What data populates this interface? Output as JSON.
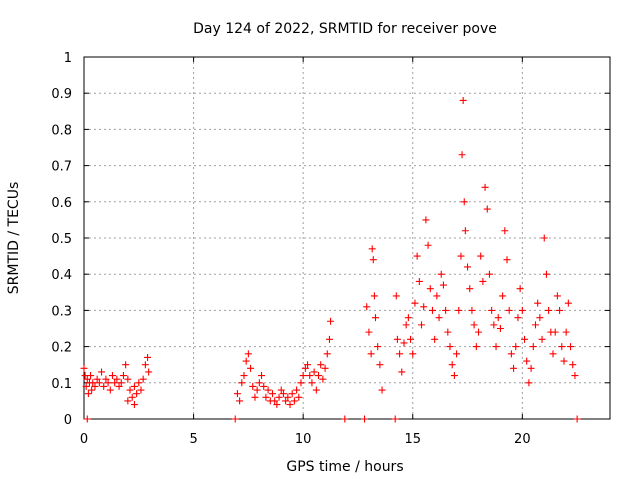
{
  "chart_data": {
    "type": "scatter",
    "title": "Day 124 of 2022, SRMTID for receiver pove",
    "xlabel": "GPS time / hours",
    "ylabel": "SRMTID / TECUs",
    "xlim": [
      0,
      24
    ],
    "ylim": [
      0,
      1
    ],
    "xticks": [
      0,
      5,
      10,
      15,
      20
    ],
    "xtick_labels": [
      "0",
      "5",
      "10",
      "15",
      "20"
    ],
    "yticks": [
      0,
      0.1,
      0.2,
      0.3,
      0.4,
      0.5,
      0.6,
      0.7,
      0.8,
      0.9,
      1
    ],
    "ytick_labels": [
      "0",
      "0.1",
      "0.2",
      "0.3",
      "0.4",
      "0.5",
      "0.6",
      "0.7",
      "0.8",
      "0.9",
      "1"
    ],
    "grid": true,
    "marker": "plus",
    "color": "#ff0000",
    "series": [
      {
        "name": "SRMTID",
        "points": [
          [
            0.0,
            0.14
          ],
          [
            0.05,
            0.12
          ],
          [
            0.1,
            0.09
          ],
          [
            0.15,
            0.11
          ],
          [
            0.2,
            0.07
          ],
          [
            0.25,
            0.1
          ],
          [
            0.3,
            0.12
          ],
          [
            0.35,
            0.08
          ],
          [
            0.4,
            0.1
          ],
          [
            0.5,
            0.09
          ],
          [
            0.6,
            0.11
          ],
          [
            0.7,
            0.1
          ],
          [
            0.8,
            0.13
          ],
          [
            0.9,
            0.09
          ],
          [
            1.0,
            0.11
          ],
          [
            1.1,
            0.1
          ],
          [
            1.2,
            0.08
          ],
          [
            1.3,
            0.12
          ],
          [
            1.4,
            0.1
          ],
          [
            1.5,
            0.11
          ],
          [
            1.6,
            0.09
          ],
          [
            1.7,
            0.1
          ],
          [
            1.8,
            0.12
          ],
          [
            1.9,
            0.15
          ],
          [
            2.0,
            0.11
          ],
          [
            2.1,
            0.08
          ],
          [
            2.2,
            0.06
          ],
          [
            2.3,
            0.09
          ],
          [
            2.4,
            0.07
          ],
          [
            2.5,
            0.1
          ],
          [
            2.6,
            0.08
          ],
          [
            2.7,
            0.11
          ],
          [
            2.8,
            0.15
          ],
          [
            2.9,
            0.17
          ],
          [
            2.95,
            0.13
          ],
          [
            0.15,
            0.0
          ],
          [
            2.0,
            0.05
          ],
          [
            2.3,
            0.04
          ],
          [
            6.9,
            0.0
          ],
          [
            7.0,
            0.07
          ],
          [
            7.1,
            0.05
          ],
          [
            7.2,
            0.1
          ],
          [
            7.3,
            0.12
          ],
          [
            7.4,
            0.16
          ],
          [
            7.5,
            0.18
          ],
          [
            7.6,
            0.14
          ],
          [
            7.7,
            0.09
          ],
          [
            7.8,
            0.06
          ],
          [
            7.9,
            0.08
          ],
          [
            8.0,
            0.1
          ],
          [
            8.1,
            0.12
          ],
          [
            8.2,
            0.09
          ],
          [
            8.3,
            0.06
          ],
          [
            8.4,
            0.08
          ],
          [
            8.5,
            0.05
          ],
          [
            8.6,
            0.07
          ],
          [
            8.7,
            0.05
          ],
          [
            8.8,
            0.04
          ],
          [
            8.9,
            0.06
          ],
          [
            9.0,
            0.08
          ],
          [
            9.1,
            0.07
          ],
          [
            9.2,
            0.05
          ],
          [
            9.3,
            0.06
          ],
          [
            9.4,
            0.04
          ],
          [
            9.5,
            0.07
          ],
          [
            9.6,
            0.05
          ],
          [
            9.7,
            0.08
          ],
          [
            9.8,
            0.06
          ],
          [
            9.9,
            0.1
          ],
          [
            10.0,
            0.12
          ],
          [
            10.1,
            0.14
          ],
          [
            10.2,
            0.15
          ],
          [
            10.3,
            0.12
          ],
          [
            10.4,
            0.1
          ],
          [
            10.5,
            0.13
          ],
          [
            10.6,
            0.08
          ],
          [
            10.7,
            0.12
          ],
          [
            10.8,
            0.15
          ],
          [
            10.9,
            0.11
          ],
          [
            11.0,
            0.14
          ],
          [
            11.1,
            0.18
          ],
          [
            11.2,
            0.22
          ],
          [
            11.25,
            0.27
          ],
          [
            11.9,
            0.0
          ],
          [
            12.8,
            0.0
          ],
          [
            12.9,
            0.31
          ],
          [
            13.0,
            0.24
          ],
          [
            13.1,
            0.18
          ],
          [
            13.15,
            0.47
          ],
          [
            13.2,
            0.44
          ],
          [
            13.25,
            0.34
          ],
          [
            13.3,
            0.28
          ],
          [
            13.4,
            0.2
          ],
          [
            13.5,
            0.15
          ],
          [
            13.6,
            0.08
          ],
          [
            14.2,
            0.0
          ],
          [
            14.25,
            0.34
          ],
          [
            14.3,
            0.22
          ],
          [
            14.4,
            0.18
          ],
          [
            14.5,
            0.13
          ],
          [
            14.6,
            0.21
          ],
          [
            14.7,
            0.26
          ],
          [
            14.8,
            0.28
          ],
          [
            14.9,
            0.22
          ],
          [
            15.0,
            0.18
          ],
          [
            15.1,
            0.32
          ],
          [
            15.2,
            0.45
          ],
          [
            15.3,
            0.38
          ],
          [
            15.4,
            0.26
          ],
          [
            15.5,
            0.31
          ],
          [
            15.6,
            0.55
          ],
          [
            15.7,
            0.48
          ],
          [
            15.8,
            0.36
          ],
          [
            15.9,
            0.3
          ],
          [
            16.0,
            0.22
          ],
          [
            16.1,
            0.34
          ],
          [
            16.2,
            0.28
          ],
          [
            16.3,
            0.4
          ],
          [
            16.4,
            0.37
          ],
          [
            16.5,
            0.3
          ],
          [
            16.6,
            0.24
          ],
          [
            16.7,
            0.2
          ],
          [
            16.8,
            0.15
          ],
          [
            16.9,
            0.12
          ],
          [
            17.0,
            0.18
          ],
          [
            17.1,
            0.3
          ],
          [
            17.2,
            0.45
          ],
          [
            17.25,
            0.73
          ],
          [
            17.3,
            0.88
          ],
          [
            17.35,
            0.6
          ],
          [
            17.4,
            0.52
          ],
          [
            17.5,
            0.42
          ],
          [
            17.6,
            0.36
          ],
          [
            17.7,
            0.3
          ],
          [
            17.8,
            0.26
          ],
          [
            17.9,
            0.2
          ],
          [
            18.0,
            0.24
          ],
          [
            18.1,
            0.45
          ],
          [
            18.2,
            0.38
          ],
          [
            18.3,
            0.64
          ],
          [
            18.4,
            0.58
          ],
          [
            18.5,
            0.4
          ],
          [
            18.6,
            0.3
          ],
          [
            18.7,
            0.26
          ],
          [
            18.8,
            0.2
          ],
          [
            18.9,
            0.28
          ],
          [
            19.0,
            0.25
          ],
          [
            19.1,
            0.34
          ],
          [
            19.2,
            0.52
          ],
          [
            19.3,
            0.44
          ],
          [
            19.4,
            0.3
          ],
          [
            19.5,
            0.18
          ],
          [
            19.6,
            0.14
          ],
          [
            19.7,
            0.2
          ],
          [
            19.8,
            0.28
          ],
          [
            19.9,
            0.36
          ],
          [
            20.0,
            0.3
          ],
          [
            20.1,
            0.22
          ],
          [
            20.2,
            0.16
          ],
          [
            20.3,
            0.1
          ],
          [
            20.4,
            0.14
          ],
          [
            20.5,
            0.2
          ],
          [
            20.6,
            0.26
          ],
          [
            20.7,
            0.32
          ],
          [
            20.8,
            0.28
          ],
          [
            20.9,
            0.22
          ],
          [
            21.0,
            0.5
          ],
          [
            21.1,
            0.4
          ],
          [
            21.2,
            0.3
          ],
          [
            21.3,
            0.24
          ],
          [
            21.4,
            0.18
          ],
          [
            21.5,
            0.24
          ],
          [
            21.6,
            0.34
          ],
          [
            21.7,
            0.3
          ],
          [
            21.8,
            0.2
          ],
          [
            21.9,
            0.16
          ],
          [
            22.0,
            0.24
          ],
          [
            22.1,
            0.32
          ],
          [
            22.2,
            0.2
          ],
          [
            22.3,
            0.15
          ],
          [
            22.4,
            0.12
          ],
          [
            22.5,
            0.0
          ]
        ]
      }
    ]
  }
}
